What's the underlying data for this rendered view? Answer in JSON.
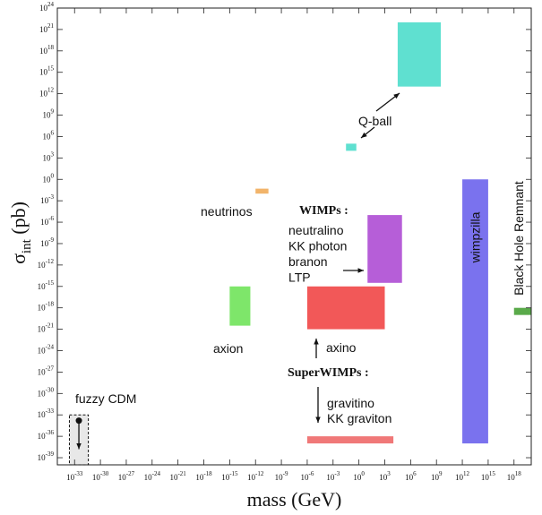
{
  "chart_data": {
    "type": "box",
    "xlabel": "mass (GeV)",
    "ylabel_main": "σ",
    "ylabel_sub": "int",
    "ylabel_unit": "(pb)",
    "x_log_range": [
      -35,
      20
    ],
    "y_log_range": [
      -40,
      24
    ],
    "x_tick_exponents": [
      -33,
      -30,
      -27,
      -24,
      -21,
      -18,
      -15,
      -12,
      -9,
      -6,
      -3,
      0,
      3,
      6,
      9,
      12,
      15,
      18
    ],
    "y_tick_exponents": [
      -39,
      -36,
      -33,
      -30,
      -27,
      -24,
      -21,
      -18,
      -15,
      -12,
      -9,
      -6,
      -3,
      0,
      3,
      6,
      9,
      12,
      15,
      18,
      21,
      24
    ],
    "tick_base": "10",
    "regions": [
      {
        "name": "Q-ball (upper)",
        "x": [
          4.5,
          9.5
        ],
        "y": [
          13,
          22
        ],
        "color": "#5fe0d0"
      },
      {
        "name": "Q-ball (lower)",
        "x": [
          -1.5,
          -0.3
        ],
        "y": [
          4,
          5
        ],
        "color": "#5fe0d0"
      },
      {
        "name": "neutrinos",
        "x": [
          -12,
          -10.5
        ],
        "y": [
          -2,
          -1.3
        ],
        "color": "#f2b46a"
      },
      {
        "name": "WIMPs",
        "x": [
          1,
          5
        ],
        "y": [
          -14.5,
          -5
        ],
        "color": "#b65ed8"
      },
      {
        "name": "axino",
        "x": [
          -6,
          3
        ],
        "y": [
          -21,
          -15
        ],
        "color": "#f25858"
      },
      {
        "name": "axion",
        "x": [
          -15,
          -12.6
        ],
        "y": [
          -20.5,
          -15
        ],
        "color": "#7ee66a"
      },
      {
        "name": "wimpzilla",
        "x": [
          12,
          15
        ],
        "y": [
          -37,
          0
        ],
        "color": "#7a72ee"
      },
      {
        "name": "gravitino / KK graviton",
        "x": [
          -6,
          4
        ],
        "y": [
          -37,
          -36
        ],
        "color": "#f07878"
      },
      {
        "name": "Black Hole Remnant",
        "x": [
          18,
          20
        ],
        "y": [
          -19,
          -18
        ],
        "color": "#5aaa4a"
      },
      {
        "name": "fuzzy CDM",
        "x": [
          -33.6,
          -31.4
        ],
        "y": [
          -40,
          -33
        ],
        "color": "#e8e8e8"
      }
    ],
    "labels": {
      "qball": "Q-ball",
      "neutrinos": "neutrinos",
      "wimps_title": "WIMPs :",
      "wimps_items": [
        "neutralino",
        "KK photon",
        "branon",
        "LTP"
      ],
      "axion": "axion",
      "axino": "axino",
      "superwimps_title": "SuperWIMPs :",
      "superwimps_items": [
        "gravitino",
        "KK graviton"
      ],
      "wimpzilla": "wimpzilla",
      "black_hole": "Black Hole Remnant",
      "fuzzy": "fuzzy CDM"
    }
  }
}
